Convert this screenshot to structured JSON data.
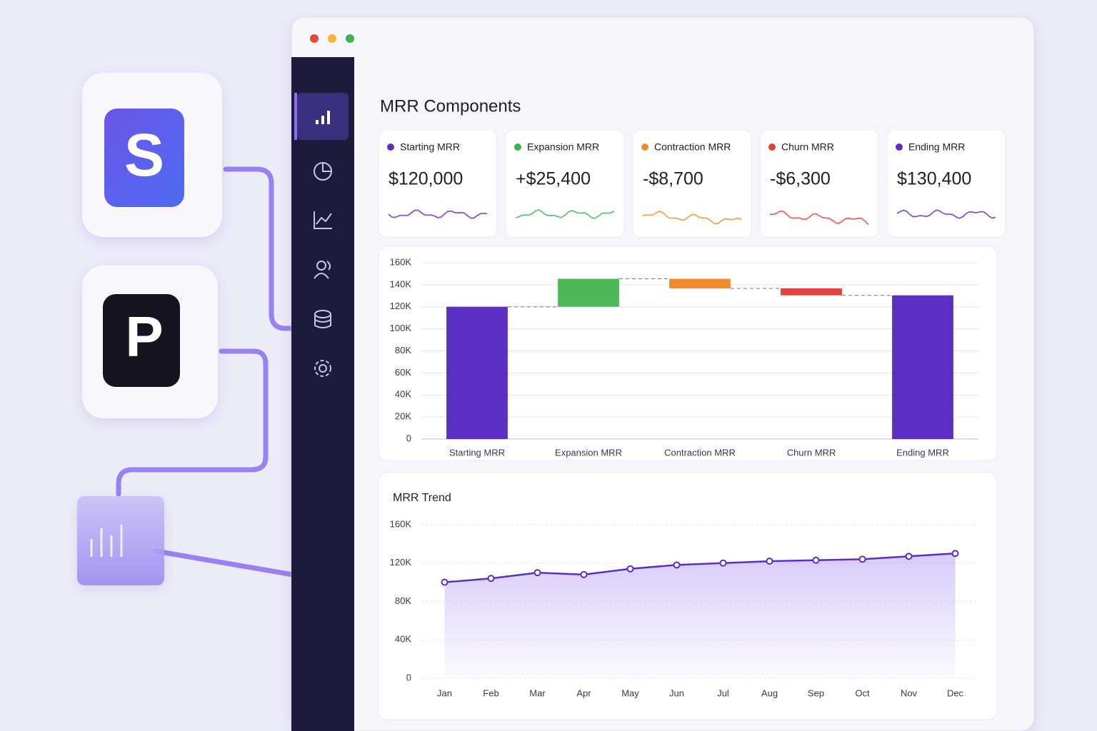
{
  "integrations": [
    {
      "logo": "S"
    },
    {
      "logo": "P"
    }
  ],
  "dashboard": {
    "title": "MRR Components",
    "cards": [
      {
        "label": "Starting MRR",
        "value": "$120,000",
        "color": "#5b2fc4"
      },
      {
        "label": "Expansion MRR",
        "value": "+$25,400",
        "color": "#3fb34f"
      },
      {
        "label": "Contraction MRR",
        "value": "-$8,700",
        "color": "#f08c2e"
      },
      {
        "label": "Churn MRR",
        "value": "-$6,300",
        "color": "#e0443a"
      },
      {
        "label": "Ending MRR",
        "value": "$130,400",
        "color": "#5b2fc4"
      }
    ]
  },
  "chart_data": [
    {
      "type": "waterfall",
      "categories": [
        "Starting MRR",
        "Expansion MRR",
        "Contraction MRR",
        "Churn MRR",
        "Ending MRR"
      ],
      "values": [
        120000,
        25400,
        -8700,
        -6300,
        130400
      ],
      "colors": [
        "#5b2fc4",
        "#4cb85a",
        "#f08c2e",
        "#e0443a",
        "#5b2fc4"
      ],
      "ylim": [
        0,
        160000
      ],
      "yticks": [
        0,
        {
          "value": 20000,
          "label": "20K"
        },
        {
          "value": 40000,
          "label": "40K"
        },
        {
          "value": 60000,
          "label": "60K"
        },
        {
          "value": 80000,
          "label": "80K"
        },
        {
          "value": 100000,
          "label": "100K"
        },
        {
          "value": 120000,
          "label": "120K"
        },
        {
          "value": 140000,
          "label": "140K"
        },
        {
          "value": 160000,
          "label": "160K"
        }
      ],
      "grid": true
    },
    {
      "type": "line",
      "title": "MRR Trend",
      "categories": [
        "Jan",
        "Feb",
        "Mar",
        "Apr",
        "May",
        "Jun",
        "Jul",
        "Aug",
        "Sep",
        "Oct",
        "Nov",
        "Dec"
      ],
      "values": [
        100000,
        104000,
        110000,
        108000,
        114000,
        118000,
        120000,
        122000,
        123000,
        124000,
        127000,
        130000
      ],
      "color": "#5b2fc4",
      "ylim": [
        0,
        160000
      ],
      "yticks": [
        0,
        {
          "value": 40000,
          "label": "40K"
        },
        {
          "value": 80000,
          "label": "80K"
        },
        {
          "value": 120000,
          "label": "120K"
        },
        {
          "value": 160000,
          "label": "160K"
        }
      ],
      "grid": true
    }
  ]
}
